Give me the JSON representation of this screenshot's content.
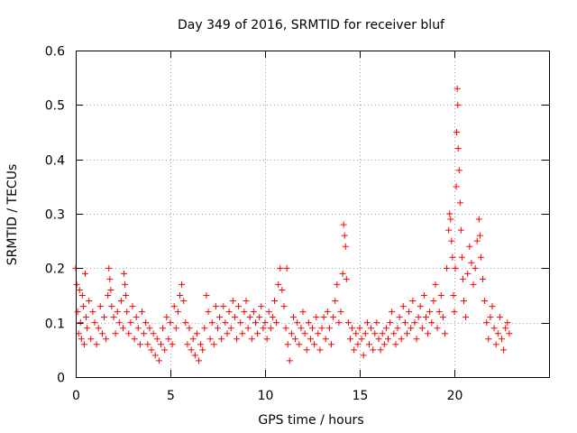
{
  "chart_data": {
    "type": "scatter",
    "title": "Day 349 of 2016, SRMTID for receiver bluf",
    "xlabel": "GPS time / hours",
    "ylabel": "SRMTID / TECUs",
    "xlim": [
      0,
      25
    ],
    "ylim": [
      0,
      0.6
    ],
    "xticks": [
      0,
      5,
      10,
      15,
      20
    ],
    "xtick_labels": [
      "0",
      "5",
      "10",
      "15",
      "20"
    ],
    "yticks": [
      0,
      0.1,
      0.2,
      0.3,
      0.4,
      0.5,
      0.6
    ],
    "ytick_labels": [
      "0",
      "0.1",
      "0.2",
      "0.3",
      "0.4",
      "0.5",
      "0.6"
    ],
    "grid": true,
    "marker": "+",
    "color": "#ff0000",
    "series": [
      {
        "name": "SRMTID",
        "points": [
          [
            0.0,
            0.2
          ],
          [
            0.05,
            0.17
          ],
          [
            0.1,
            0.12
          ],
          [
            0.15,
            0.08
          ],
          [
            0.2,
            0.16
          ],
          [
            0.25,
            0.1
          ],
          [
            0.3,
            0.07
          ],
          [
            0.35,
            0.15
          ],
          [
            0.4,
            0.13
          ],
          [
            0.45,
            0.06
          ],
          [
            0.5,
            0.19
          ],
          [
            0.55,
            0.11
          ],
          [
            0.6,
            0.09
          ],
          [
            0.7,
            0.14
          ],
          [
            0.8,
            0.07
          ],
          [
            0.9,
            0.12
          ],
          [
            1.0,
            0.1
          ],
          [
            1.1,
            0.06
          ],
          [
            1.2,
            0.09
          ],
          [
            1.3,
            0.13
          ],
          [
            1.4,
            0.08
          ],
          [
            1.5,
            0.11
          ],
          [
            1.6,
            0.07
          ],
          [
            1.7,
            0.15
          ],
          [
            1.75,
            0.2
          ],
          [
            1.8,
            0.18
          ],
          [
            1.85,
            0.16
          ],
          [
            1.9,
            0.13
          ],
          [
            2.0,
            0.11
          ],
          [
            2.1,
            0.08
          ],
          [
            2.2,
            0.12
          ],
          [
            2.3,
            0.1
          ],
          [
            2.4,
            0.14
          ],
          [
            2.5,
            0.09
          ],
          [
            2.55,
            0.19
          ],
          [
            2.6,
            0.17
          ],
          [
            2.65,
            0.15
          ],
          [
            2.7,
            0.12
          ],
          [
            2.8,
            0.08
          ],
          [
            2.9,
            0.1
          ],
          [
            3.0,
            0.13
          ],
          [
            3.1,
            0.07
          ],
          [
            3.2,
            0.11
          ],
          [
            3.3,
            0.09
          ],
          [
            3.4,
            0.06
          ],
          [
            3.5,
            0.12
          ],
          [
            3.6,
            0.08
          ],
          [
            3.7,
            0.1
          ],
          [
            3.8,
            0.06
          ],
          [
            3.9,
            0.09
          ],
          [
            4.0,
            0.05
          ],
          [
            4.1,
            0.08
          ],
          [
            4.2,
            0.04
          ],
          [
            4.3,
            0.07
          ],
          [
            4.4,
            0.03
          ],
          [
            4.5,
            0.06
          ],
          [
            4.6,
            0.09
          ],
          [
            4.7,
            0.05
          ],
          [
            4.8,
            0.11
          ],
          [
            4.9,
            0.07
          ],
          [
            5.0,
            0.1
          ],
          [
            5.1,
            0.06
          ],
          [
            5.2,
            0.13
          ],
          [
            5.3,
            0.09
          ],
          [
            5.4,
            0.12
          ],
          [
            5.5,
            0.15
          ],
          [
            5.6,
            0.17
          ],
          [
            5.7,
            0.14
          ],
          [
            5.8,
            0.1
          ],
          [
            5.9,
            0.06
          ],
          [
            6.0,
            0.09
          ],
          [
            6.1,
            0.05
          ],
          [
            6.2,
            0.07
          ],
          [
            6.3,
            0.04
          ],
          [
            6.4,
            0.08
          ],
          [
            6.5,
            0.03
          ],
          [
            6.6,
            0.06
          ],
          [
            6.7,
            0.05
          ],
          [
            6.8,
            0.09
          ],
          [
            6.9,
            0.15
          ],
          [
            7.0,
            0.12
          ],
          [
            7.1,
            0.07
          ],
          [
            7.2,
            0.1
          ],
          [
            7.3,
            0.06
          ],
          [
            7.4,
            0.13
          ],
          [
            7.5,
            0.09
          ],
          [
            7.6,
            0.11
          ],
          [
            7.7,
            0.07
          ],
          [
            7.8,
            0.13
          ],
          [
            7.9,
            0.1
          ],
          [
            8.0,
            0.08
          ],
          [
            8.1,
            0.12
          ],
          [
            8.2,
            0.09
          ],
          [
            8.3,
            0.14
          ],
          [
            8.4,
            0.11
          ],
          [
            8.5,
            0.07
          ],
          [
            8.6,
            0.13
          ],
          [
            8.7,
            0.1
          ],
          [
            8.8,
            0.08
          ],
          [
            8.9,
            0.12
          ],
          [
            9.0,
            0.14
          ],
          [
            9.1,
            0.09
          ],
          [
            9.2,
            0.11
          ],
          [
            9.3,
            0.07
          ],
          [
            9.4,
            0.12
          ],
          [
            9.5,
            0.1
          ],
          [
            9.6,
            0.08
          ],
          [
            9.7,
            0.11
          ],
          [
            9.8,
            0.13
          ],
          [
            9.9,
            0.09
          ],
          [
            10.0,
            0.1
          ],
          [
            10.1,
            0.07
          ],
          [
            10.2,
            0.12
          ],
          [
            10.3,
            0.09
          ],
          [
            10.4,
            0.11
          ],
          [
            10.5,
            0.14
          ],
          [
            10.6,
            0.1
          ],
          [
            10.7,
            0.17
          ],
          [
            10.8,
            0.2
          ],
          [
            10.9,
            0.16
          ],
          [
            11.0,
            0.13
          ],
          [
            11.1,
            0.09
          ],
          [
            11.15,
            0.2
          ],
          [
            11.2,
            0.06
          ],
          [
            11.3,
            0.03
          ],
          [
            11.4,
            0.08
          ],
          [
            11.5,
            0.11
          ],
          [
            11.6,
            0.07
          ],
          [
            11.7,
            0.1
          ],
          [
            11.8,
            0.06
          ],
          [
            11.9,
            0.09
          ],
          [
            12.0,
            0.12
          ],
          [
            12.1,
            0.08
          ],
          [
            12.2,
            0.05
          ],
          [
            12.3,
            0.1
          ],
          [
            12.4,
            0.07
          ],
          [
            12.5,
            0.09
          ],
          [
            12.6,
            0.06
          ],
          [
            12.7,
            0.11
          ],
          [
            12.8,
            0.08
          ],
          [
            12.9,
            0.05
          ],
          [
            13.0,
            0.09
          ],
          [
            13.1,
            0.11
          ],
          [
            13.2,
            0.07
          ],
          [
            13.3,
            0.12
          ],
          [
            13.4,
            0.09
          ],
          [
            13.5,
            0.06
          ],
          [
            13.6,
            0.11
          ],
          [
            13.7,
            0.14
          ],
          [
            13.8,
            0.17
          ],
          [
            13.9,
            0.1
          ],
          [
            14.0,
            0.12
          ],
          [
            14.1,
            0.19
          ],
          [
            14.15,
            0.28
          ],
          [
            14.2,
            0.26
          ],
          [
            14.25,
            0.24
          ],
          [
            14.3,
            0.18
          ],
          [
            14.4,
            0.1
          ],
          [
            14.5,
            0.07
          ],
          [
            14.6,
            0.09
          ],
          [
            14.7,
            0.05
          ],
          [
            14.8,
            0.08
          ],
          [
            14.9,
            0.06
          ],
          [
            15.0,
            0.09
          ],
          [
            15.1,
            0.07
          ],
          [
            15.2,
            0.04
          ],
          [
            15.3,
            0.08
          ],
          [
            15.4,
            0.1
          ],
          [
            15.5,
            0.06
          ],
          [
            15.6,
            0.09
          ],
          [
            15.7,
            0.05
          ],
          [
            15.8,
            0.08
          ],
          [
            15.9,
            0.1
          ],
          [
            16.0,
            0.07
          ],
          [
            16.1,
            0.05
          ],
          [
            16.2,
            0.08
          ],
          [
            16.3,
            0.06
          ],
          [
            16.4,
            0.09
          ],
          [
            16.5,
            0.07
          ],
          [
            16.6,
            0.1
          ],
          [
            16.7,
            0.12
          ],
          [
            16.8,
            0.08
          ],
          [
            16.9,
            0.06
          ],
          [
            17.0,
            0.09
          ],
          [
            17.1,
            0.11
          ],
          [
            17.2,
            0.07
          ],
          [
            17.3,
            0.13
          ],
          [
            17.4,
            0.1
          ],
          [
            17.5,
            0.08
          ],
          [
            17.6,
            0.12
          ],
          [
            17.7,
            0.09
          ],
          [
            17.8,
            0.14
          ],
          [
            17.9,
            0.1
          ],
          [
            18.0,
            0.07
          ],
          [
            18.1,
            0.11
          ],
          [
            18.2,
            0.13
          ],
          [
            18.3,
            0.09
          ],
          [
            18.4,
            0.15
          ],
          [
            18.5,
            0.11
          ],
          [
            18.6,
            0.08
          ],
          [
            18.7,
            0.12
          ],
          [
            18.8,
            0.1
          ],
          [
            18.9,
            0.14
          ],
          [
            19.0,
            0.17
          ],
          [
            19.1,
            0.09
          ],
          [
            19.2,
            0.12
          ],
          [
            19.3,
            0.15
          ],
          [
            19.4,
            0.11
          ],
          [
            19.5,
            0.08
          ],
          [
            19.6,
            0.2
          ],
          [
            19.7,
            0.27
          ],
          [
            19.75,
            0.3
          ],
          [
            19.8,
            0.29
          ],
          [
            19.85,
            0.25
          ],
          [
            19.9,
            0.22
          ],
          [
            19.95,
            0.15
          ],
          [
            20.0,
            0.12
          ],
          [
            20.05,
            0.2
          ],
          [
            20.1,
            0.35
          ],
          [
            20.12,
            0.45
          ],
          [
            20.15,
            0.53
          ],
          [
            20.18,
            0.5
          ],
          [
            20.2,
            0.42
          ],
          [
            20.25,
            0.38
          ],
          [
            20.3,
            0.32
          ],
          [
            20.35,
            0.27
          ],
          [
            20.4,
            0.22
          ],
          [
            20.45,
            0.18
          ],
          [
            20.5,
            0.14
          ],
          [
            20.6,
            0.11
          ],
          [
            20.7,
            0.19
          ],
          [
            20.8,
            0.24
          ],
          [
            20.9,
            0.21
          ],
          [
            21.0,
            0.17
          ],
          [
            21.1,
            0.2
          ],
          [
            21.2,
            0.25
          ],
          [
            21.3,
            0.29
          ],
          [
            21.35,
            0.26
          ],
          [
            21.4,
            0.22
          ],
          [
            21.5,
            0.18
          ],
          [
            21.6,
            0.14
          ],
          [
            21.7,
            0.1
          ],
          [
            21.8,
            0.07
          ],
          [
            21.9,
            0.11
          ],
          [
            22.0,
            0.13
          ],
          [
            22.1,
            0.09
          ],
          [
            22.2,
            0.06
          ],
          [
            22.3,
            0.08
          ],
          [
            22.4,
            0.11
          ],
          [
            22.5,
            0.07
          ],
          [
            22.6,
            0.05
          ],
          [
            22.7,
            0.09
          ],
          [
            22.8,
            0.1
          ],
          [
            22.9,
            0.08
          ]
        ]
      }
    ]
  }
}
